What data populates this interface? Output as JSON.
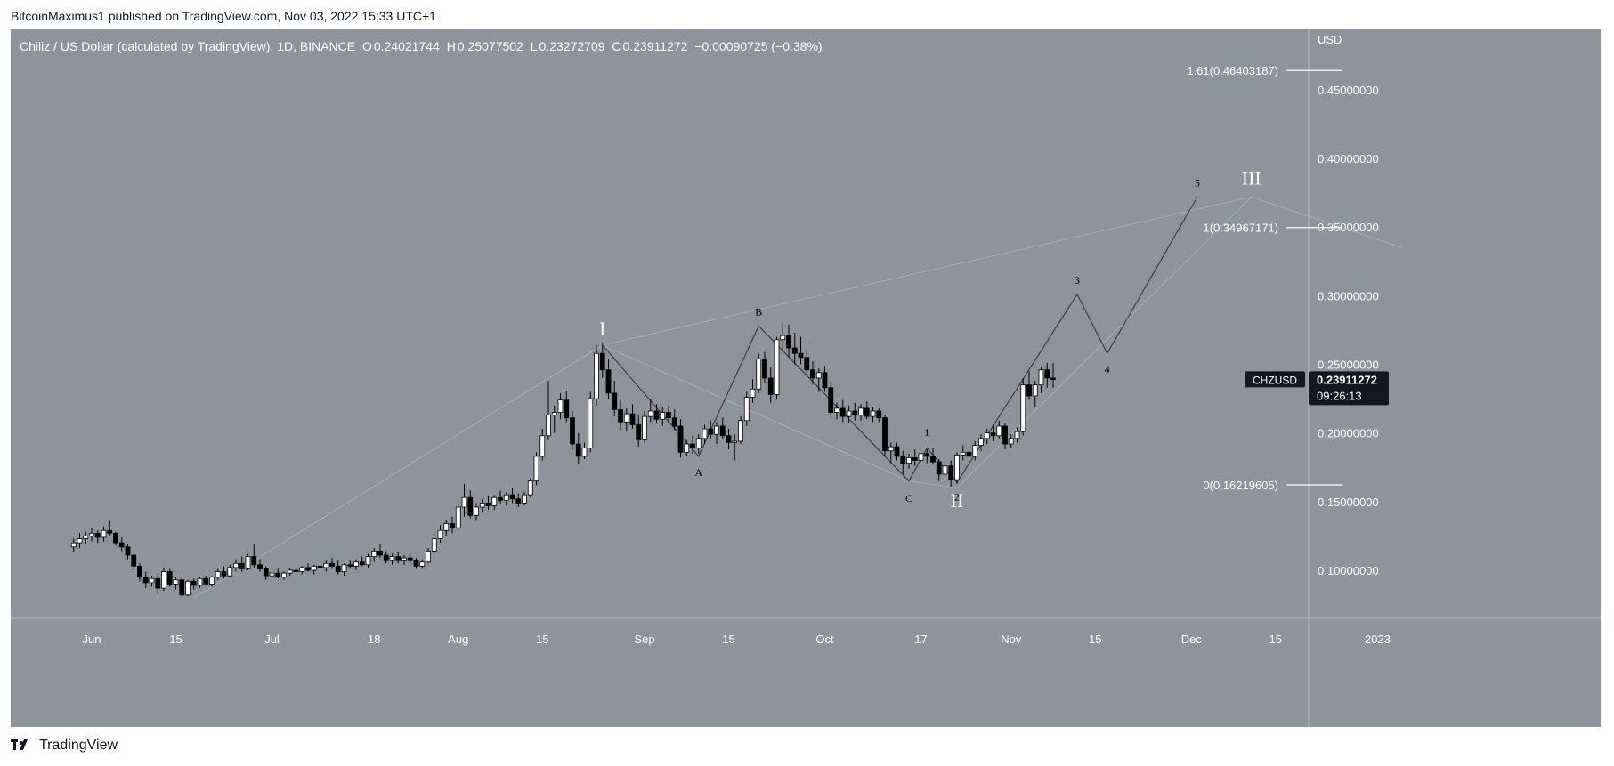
{
  "header": {
    "publisher_text": "BitcoinMaximus1 published on TradingView.com, Nov 03, 2022 15:33 UTC+1"
  },
  "legend": {
    "symbol_title": "Chiliz / US Dollar (calculated by TradingView), 1D, BINANCE",
    "o_label": "O",
    "o_value": "0.24021744",
    "h_label": "H",
    "h_value": "0.25077502",
    "l_label": "L",
    "l_value": "0.23272709",
    "c_label": "C",
    "c_value": "0.23911272",
    "change": "−0.00090725 (−0.38%)"
  },
  "price_scale": {
    "currency": "USD",
    "ticks": [
      "0.45000000",
      "0.40000000",
      "0.35000000",
      "0.30000000",
      "0.25000000",
      "0.20000000",
      "0.15000000",
      "0.10000000"
    ],
    "tick_values": [
      0.45,
      0.4,
      0.35,
      0.3,
      0.25,
      0.2,
      0.15,
      0.1
    ],
    "current_symbol": "CHZUSD",
    "current_price": "0.23911272",
    "countdown": "09:26:13"
  },
  "time_axis": {
    "labels": [
      "Jun",
      "15",
      "Jul",
      "18",
      "Aug",
      "15",
      "Sep",
      "15",
      "Oct",
      "17",
      "Nov",
      "15",
      "Dec",
      "15",
      "2023"
    ],
    "label_day": [
      0,
      14,
      30,
      47,
      61,
      75,
      92,
      106,
      122,
      138,
      153,
      167,
      183,
      197,
      214
    ]
  },
  "fib_levels": [
    {
      "label": "1.61(0.46403187)",
      "value": 0.46403187
    },
    {
      "label": "1(0.34967171)",
      "value": 0.34967171
    },
    {
      "label": "0(0.16219605)",
      "value": 0.16219605
    }
  ],
  "wave_labels": [
    {
      "text": "I",
      "day": 85,
      "price": 0.262,
      "size": "large"
    },
    {
      "text": "A",
      "day": 101,
      "price": 0.183,
      "size": "small"
    },
    {
      "text": "B",
      "day": 111,
      "price": 0.278,
      "size": "small"
    },
    {
      "text": "C",
      "day": 136,
      "price": 0.164,
      "size": "small"
    },
    {
      "text": "II",
      "day": 144,
      "price": 0.164,
      "size": "large"
    },
    {
      "text": "1",
      "day": 139,
      "price": 0.19,
      "size": "small"
    },
    {
      "text": "2",
      "day": 144,
      "price": 0.165,
      "size": "small"
    },
    {
      "text": "3",
      "day": 164,
      "price": 0.301,
      "size": "small"
    },
    {
      "text": "4",
      "day": 169,
      "price": 0.258,
      "size": "small"
    },
    {
      "text": "5",
      "day": 184,
      "price": 0.372,
      "size": "small"
    },
    {
      "text": "III",
      "day": 193,
      "price": 0.372,
      "size": "large"
    }
  ],
  "colors": {
    "chart_bg": "#8f939b",
    "up_candle": "#ffffff",
    "down_candle": "#000000",
    "wave_line": "#3a3d44",
    "channel_line": "#a8acb3",
    "price_tag_bg": "#131722",
    "grid_text": "#ffffff"
  },
  "chart_data": {
    "type": "candlestick",
    "title": "Chiliz / US Dollar (calculated by TradingView), 1D, BINANCE",
    "ylim": [
      0.065,
      0.494
    ],
    "x_units": "days since Jun 1 2022",
    "candles": [
      [
        -3,
        0.117,
        0.123,
        0.113,
        0.12
      ],
      [
        -2,
        0.12,
        0.127,
        0.116,
        0.123
      ],
      [
        -1,
        0.123,
        0.128,
        0.119,
        0.125
      ],
      [
        0,
        0.125,
        0.131,
        0.121,
        0.127
      ],
      [
        1,
        0.127,
        0.129,
        0.12,
        0.124
      ],
      [
        2,
        0.124,
        0.132,
        0.121,
        0.129
      ],
      [
        3,
        0.129,
        0.136,
        0.125,
        0.127
      ],
      [
        4,
        0.127,
        0.128,
        0.118,
        0.12
      ],
      [
        5,
        0.12,
        0.124,
        0.114,
        0.117
      ],
      [
        6,
        0.117,
        0.119,
        0.108,
        0.111
      ],
      [
        7,
        0.111,
        0.112,
        0.1,
        0.103
      ],
      [
        8,
        0.103,
        0.105,
        0.092,
        0.095
      ],
      [
        9,
        0.095,
        0.099,
        0.087,
        0.091
      ],
      [
        10,
        0.091,
        0.096,
        0.088,
        0.094
      ],
      [
        11,
        0.094,
        0.098,
        0.083,
        0.087
      ],
      [
        12,
        0.087,
        0.102,
        0.085,
        0.099
      ],
      [
        13,
        0.099,
        0.101,
        0.088,
        0.09
      ],
      [
        14,
        0.09,
        0.095,
        0.086,
        0.093
      ],
      [
        15,
        0.093,
        0.096,
        0.08,
        0.082
      ],
      [
        16,
        0.082,
        0.093,
        0.081,
        0.092
      ],
      [
        17,
        0.092,
        0.094,
        0.086,
        0.089
      ],
      [
        18,
        0.089,
        0.095,
        0.087,
        0.094
      ],
      [
        19,
        0.094,
        0.096,
        0.089,
        0.09
      ],
      [
        20,
        0.09,
        0.096,
        0.088,
        0.095
      ],
      [
        21,
        0.095,
        0.101,
        0.093,
        0.099
      ],
      [
        22,
        0.099,
        0.103,
        0.094,
        0.096
      ],
      [
        23,
        0.096,
        0.104,
        0.095,
        0.102
      ],
      [
        24,
        0.102,
        0.108,
        0.099,
        0.105
      ],
      [
        25,
        0.105,
        0.11,
        0.099,
        0.101
      ],
      [
        26,
        0.101,
        0.112,
        0.1,
        0.11
      ],
      [
        27,
        0.11,
        0.119,
        0.102,
        0.104
      ],
      [
        28,
        0.104,
        0.108,
        0.099,
        0.101
      ],
      [
        29,
        0.101,
        0.103,
        0.093,
        0.096
      ],
      [
        30,
        0.096,
        0.099,
        0.094,
        0.098
      ],
      [
        31,
        0.098,
        0.101,
        0.094,
        0.095
      ],
      [
        32,
        0.095,
        0.099,
        0.093,
        0.098
      ],
      [
        33,
        0.098,
        0.102,
        0.096,
        0.1
      ],
      [
        34,
        0.1,
        0.104,
        0.097,
        0.099
      ],
      [
        35,
        0.099,
        0.103,
        0.097,
        0.102
      ],
      [
        36,
        0.102,
        0.105,
        0.099,
        0.1
      ],
      [
        37,
        0.1,
        0.104,
        0.097,
        0.103
      ],
      [
        38,
        0.103,
        0.107,
        0.1,
        0.102
      ],
      [
        39,
        0.102,
        0.107,
        0.099,
        0.105
      ],
      [
        40,
        0.105,
        0.109,
        0.101,
        0.103
      ],
      [
        41,
        0.103,
        0.107,
        0.097,
        0.099
      ],
      [
        42,
        0.099,
        0.105,
        0.096,
        0.104
      ],
      [
        43,
        0.104,
        0.107,
        0.101,
        0.103
      ],
      [
        44,
        0.103,
        0.108,
        0.1,
        0.106
      ],
      [
        45,
        0.106,
        0.11,
        0.103,
        0.104
      ],
      [
        46,
        0.104,
        0.112,
        0.102,
        0.11
      ],
      [
        47,
        0.11,
        0.116,
        0.106,
        0.114
      ],
      [
        48,
        0.114,
        0.119,
        0.109,
        0.111
      ],
      [
        49,
        0.111,
        0.114,
        0.105,
        0.107
      ],
      [
        50,
        0.107,
        0.112,
        0.104,
        0.11
      ],
      [
        51,
        0.11,
        0.113,
        0.105,
        0.107
      ],
      [
        52,
        0.107,
        0.111,
        0.104,
        0.109
      ],
      [
        53,
        0.109,
        0.112,
        0.105,
        0.107
      ],
      [
        54,
        0.107,
        0.109,
        0.101,
        0.103
      ],
      [
        55,
        0.103,
        0.108,
        0.101,
        0.106
      ],
      [
        56,
        0.106,
        0.116,
        0.105,
        0.114
      ],
      [
        57,
        0.114,
        0.126,
        0.112,
        0.123
      ],
      [
        58,
        0.123,
        0.133,
        0.12,
        0.129
      ],
      [
        59,
        0.129,
        0.137,
        0.125,
        0.134
      ],
      [
        60,
        0.134,
        0.139,
        0.127,
        0.131
      ],
      [
        61,
        0.131,
        0.149,
        0.129,
        0.146
      ],
      [
        62,
        0.146,
        0.163,
        0.139,
        0.153
      ],
      [
        63,
        0.153,
        0.158,
        0.138,
        0.14
      ],
      [
        64,
        0.14,
        0.149,
        0.136,
        0.146
      ],
      [
        65,
        0.146,
        0.152,
        0.142,
        0.149
      ],
      [
        66,
        0.149,
        0.154,
        0.144,
        0.147
      ],
      [
        67,
        0.147,
        0.155,
        0.144,
        0.153
      ],
      [
        68,
        0.153,
        0.158,
        0.148,
        0.151
      ],
      [
        69,
        0.151,
        0.157,
        0.147,
        0.155
      ],
      [
        70,
        0.155,
        0.16,
        0.149,
        0.152
      ],
      [
        71,
        0.152,
        0.156,
        0.146,
        0.149
      ],
      [
        72,
        0.149,
        0.157,
        0.147,
        0.155
      ],
      [
        73,
        0.155,
        0.167,
        0.153,
        0.165
      ],
      [
        74,
        0.165,
        0.186,
        0.162,
        0.183
      ],
      [
        75,
        0.183,
        0.203,
        0.18,
        0.198
      ],
      [
        76,
        0.198,
        0.238,
        0.195,
        0.213
      ],
      [
        77,
        0.213,
        0.22,
        0.2,
        0.215
      ],
      [
        78,
        0.215,
        0.229,
        0.21,
        0.224
      ],
      [
        79,
        0.224,
        0.231,
        0.208,
        0.211
      ],
      [
        80,
        0.211,
        0.216,
        0.188,
        0.192
      ],
      [
        81,
        0.192,
        0.2,
        0.177,
        0.183
      ],
      [
        82,
        0.183,
        0.193,
        0.181,
        0.189
      ],
      [
        83,
        0.189,
        0.23,
        0.186,
        0.225
      ],
      [
        84,
        0.225,
        0.264,
        0.22,
        0.258
      ],
      [
        85,
        0.258,
        0.266,
        0.24,
        0.246
      ],
      [
        86,
        0.246,
        0.254,
        0.225,
        0.229
      ],
      [
        87,
        0.229,
        0.238,
        0.212,
        0.217
      ],
      [
        88,
        0.217,
        0.224,
        0.202,
        0.208
      ],
      [
        89,
        0.208,
        0.218,
        0.201,
        0.214
      ],
      [
        90,
        0.214,
        0.221,
        0.203,
        0.206
      ],
      [
        91,
        0.206,
        0.213,
        0.19,
        0.195
      ],
      [
        92,
        0.195,
        0.216,
        0.193,
        0.212
      ],
      [
        93,
        0.212,
        0.225,
        0.208,
        0.216
      ],
      [
        94,
        0.216,
        0.221,
        0.207,
        0.21
      ],
      [
        95,
        0.21,
        0.219,
        0.205,
        0.215
      ],
      [
        96,
        0.215,
        0.22,
        0.207,
        0.211
      ],
      [
        97,
        0.211,
        0.217,
        0.202,
        0.205
      ],
      [
        98,
        0.205,
        0.21,
        0.182,
        0.186
      ],
      [
        99,
        0.186,
        0.195,
        0.183,
        0.192
      ],
      [
        100,
        0.192,
        0.198,
        0.185,
        0.189
      ],
      [
        101,
        0.189,
        0.199,
        0.185,
        0.196
      ],
      [
        102,
        0.196,
        0.206,
        0.192,
        0.203
      ],
      [
        103,
        0.203,
        0.209,
        0.196,
        0.199
      ],
      [
        104,
        0.199,
        0.208,
        0.192,
        0.205
      ],
      [
        105,
        0.205,
        0.211,
        0.196,
        0.198
      ],
      [
        106,
        0.198,
        0.203,
        0.188,
        0.193
      ],
      [
        107,
        0.193,
        0.199,
        0.18,
        0.194
      ],
      [
        108,
        0.194,
        0.212,
        0.192,
        0.209
      ],
      [
        109,
        0.209,
        0.23,
        0.205,
        0.226
      ],
      [
        110,
        0.226,
        0.239,
        0.222,
        0.232
      ],
      [
        111,
        0.232,
        0.258,
        0.229,
        0.254
      ],
      [
        112,
        0.254,
        0.259,
        0.236,
        0.24
      ],
      [
        113,
        0.24,
        0.248,
        0.222,
        0.228
      ],
      [
        114,
        0.228,
        0.27,
        0.225,
        0.268
      ],
      [
        115,
        0.268,
        0.281,
        0.259,
        0.271
      ],
      [
        116,
        0.271,
        0.279,
        0.255,
        0.262
      ],
      [
        117,
        0.262,
        0.273,
        0.25,
        0.258
      ],
      [
        118,
        0.258,
        0.27,
        0.25,
        0.255
      ],
      [
        119,
        0.255,
        0.262,
        0.242,
        0.246
      ],
      [
        120,
        0.246,
        0.252,
        0.235,
        0.24
      ],
      [
        121,
        0.24,
        0.247,
        0.23,
        0.244
      ],
      [
        122,
        0.244,
        0.249,
        0.23,
        0.233
      ],
      [
        123,
        0.233,
        0.238,
        0.211,
        0.215
      ],
      [
        124,
        0.215,
        0.222,
        0.21,
        0.218
      ],
      [
        125,
        0.218,
        0.224,
        0.208,
        0.212
      ],
      [
        126,
        0.212,
        0.22,
        0.207,
        0.216
      ],
      [
        127,
        0.216,
        0.222,
        0.209,
        0.213
      ],
      [
        128,
        0.213,
        0.221,
        0.209,
        0.218
      ],
      [
        129,
        0.218,
        0.223,
        0.21,
        0.212
      ],
      [
        130,
        0.212,
        0.219,
        0.208,
        0.216
      ],
      [
        131,
        0.216,
        0.218,
        0.208,
        0.211
      ],
      [
        132,
        0.211,
        0.213,
        0.183,
        0.187
      ],
      [
        133,
        0.187,
        0.193,
        0.178,
        0.19
      ],
      [
        134,
        0.19,
        0.193,
        0.18,
        0.183
      ],
      [
        135,
        0.183,
        0.187,
        0.17,
        0.178
      ],
      [
        136,
        0.178,
        0.185,
        0.174,
        0.182
      ],
      [
        137,
        0.182,
        0.188,
        0.176,
        0.18
      ],
      [
        138,
        0.18,
        0.187,
        0.177,
        0.185
      ],
      [
        139,
        0.185,
        0.188,
        0.178,
        0.183
      ],
      [
        140,
        0.183,
        0.189,
        0.177,
        0.179
      ],
      [
        141,
        0.179,
        0.181,
        0.165,
        0.17
      ],
      [
        142,
        0.17,
        0.18,
        0.166,
        0.176
      ],
      [
        143,
        0.176,
        0.18,
        0.161,
        0.166
      ],
      [
        144,
        0.166,
        0.186,
        0.163,
        0.184
      ],
      [
        145,
        0.184,
        0.191,
        0.18,
        0.186
      ],
      [
        146,
        0.186,
        0.192,
        0.179,
        0.183
      ],
      [
        147,
        0.183,
        0.194,
        0.18,
        0.191
      ],
      [
        148,
        0.191,
        0.199,
        0.187,
        0.196
      ],
      [
        149,
        0.196,
        0.203,
        0.192,
        0.2
      ],
      [
        150,
        0.2,
        0.206,
        0.194,
        0.198
      ],
      [
        151,
        0.198,
        0.209,
        0.196,
        0.205
      ],
      [
        152,
        0.205,
        0.207,
        0.188,
        0.192
      ],
      [
        153,
        0.192,
        0.199,
        0.189,
        0.196
      ],
      [
        154,
        0.196,
        0.204,
        0.193,
        0.201
      ],
      [
        155,
        0.201,
        0.24,
        0.198,
        0.235
      ],
      [
        156,
        0.235,
        0.245,
        0.224,
        0.227
      ],
      [
        157,
        0.227,
        0.238,
        0.219,
        0.235
      ],
      [
        158,
        0.235,
        0.248,
        0.229,
        0.246
      ],
      [
        159,
        0.246,
        0.251,
        0.233,
        0.24
      ],
      [
        160,
        0.24,
        0.251,
        0.233,
        0.239
      ]
    ],
    "wave_path": [
      [
        85,
        0.264
      ],
      [
        101,
        0.183
      ],
      [
        111,
        0.278
      ],
      [
        136,
        0.165
      ],
      [
        139,
        0.189
      ],
      [
        144,
        0.164
      ],
      [
        164,
        0.301
      ],
      [
        169,
        0.258
      ],
      [
        184,
        0.372
      ]
    ],
    "channel_upper": [
      [
        17,
        0.08
      ],
      [
        85,
        0.264
      ],
      [
        193,
        0.372
      ],
      [
        218,
        0.335
      ]
    ],
    "channel_lower": [
      [
        85,
        0.264
      ],
      [
        136,
        0.165
      ],
      [
        144,
        0.16
      ],
      [
        193,
        0.372
      ]
    ]
  }
}
